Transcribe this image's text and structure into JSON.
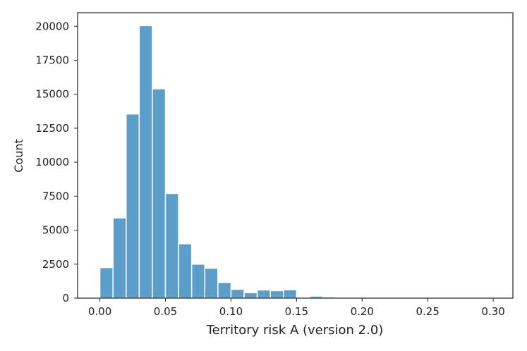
{
  "chart_data": {
    "type": "bar",
    "title": "",
    "xlabel": "Territory risk A (version 2.0)",
    "ylabel": "Count",
    "bin_width": 0.01,
    "bins": [
      {
        "x0": 0.0,
        "value": 2250
      },
      {
        "x0": 0.01,
        "value": 5900
      },
      {
        "x0": 0.02,
        "value": 13550
      },
      {
        "x0": 0.03,
        "value": 20050
      },
      {
        "x0": 0.04,
        "value": 15400
      },
      {
        "x0": 0.05,
        "value": 7700
      },
      {
        "x0": 0.06,
        "value": 4000
      },
      {
        "x0": 0.07,
        "value": 2500
      },
      {
        "x0": 0.08,
        "value": 2200
      },
      {
        "x0": 0.09,
        "value": 1150
      },
      {
        "x0": 0.1,
        "value": 650
      },
      {
        "x0": 0.11,
        "value": 400
      },
      {
        "x0": 0.12,
        "value": 600
      },
      {
        "x0": 0.13,
        "value": 550
      },
      {
        "x0": 0.14,
        "value": 620
      },
      {
        "x0": 0.15,
        "value": 0
      },
      {
        "x0": 0.16,
        "value": 150
      },
      {
        "x0": 0.17,
        "value": 100
      },
      {
        "x0": 0.18,
        "value": 30
      },
      {
        "x0": 0.19,
        "value": 15
      },
      {
        "x0": 0.2,
        "value": 10
      },
      {
        "x0": 0.21,
        "value": 10
      },
      {
        "x0": 0.22,
        "value": 5
      },
      {
        "x0": 0.23,
        "value": 5
      },
      {
        "x0": 0.24,
        "value": 5
      },
      {
        "x0": 0.25,
        "value": 3
      },
      {
        "x0": 0.26,
        "value": 3
      },
      {
        "x0": 0.27,
        "value": 2
      },
      {
        "x0": 0.28,
        "value": 2
      },
      {
        "x0": 0.29,
        "value": 2
      }
    ],
    "xlim": [
      -0.017,
      0.315
    ],
    "ylim": [
      0,
      21000
    ],
    "x_ticks": [
      0.0,
      0.05,
      0.1,
      0.15,
      0.2,
      0.25,
      0.3
    ],
    "x_tick_labels": [
      "0.00",
      "0.05",
      "0.10",
      "0.15",
      "0.20",
      "0.25",
      "0.30"
    ],
    "y_ticks": [
      0,
      2500,
      5000,
      7500,
      10000,
      12500,
      15000,
      17500,
      20000
    ],
    "y_tick_labels": [
      "0",
      "2500",
      "5000",
      "7500",
      "10000",
      "12500",
      "15000",
      "17500",
      "20000"
    ],
    "grid": false,
    "bar_color": "#5b9ec9",
    "bar_edge_color": "#ffffff"
  }
}
